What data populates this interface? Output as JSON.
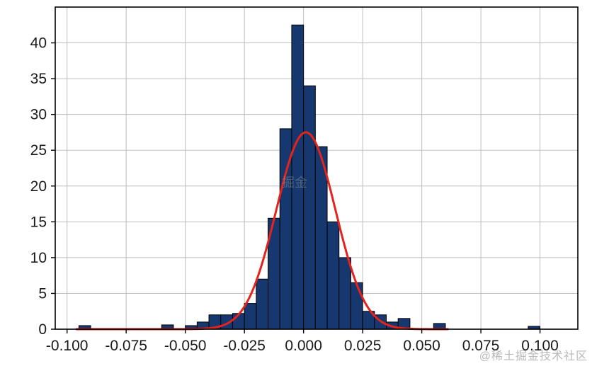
{
  "watermarks": {
    "corner": "@稀土掘金技术社区",
    "center": "掘金"
  },
  "chart_data": {
    "type": "bar",
    "subtype": "histogram-with-normal-fit",
    "title": "",
    "xlabel": "",
    "ylabel": "",
    "x_range": [
      -0.105,
      0.116
    ],
    "y_range": [
      0,
      45
    ],
    "x_tick_values": [
      -0.1,
      -0.075,
      -0.05,
      -0.025,
      0.0,
      0.025,
      0.05,
      0.075,
      0.1
    ],
    "x_tick_labels": [
      "-0.100",
      "-0.075",
      "-0.050",
      "-0.025",
      "0.000",
      "0.025",
      "0.050",
      "0.075",
      "0.100"
    ],
    "y_tick_values": [
      0,
      5,
      10,
      15,
      20,
      25,
      30,
      35,
      40
    ],
    "y_tick_labels": [
      "0",
      "5",
      "10",
      "15",
      "20",
      "25",
      "30",
      "35",
      "40"
    ],
    "grid": true,
    "grid_color": "#bdbdbd",
    "axis_color": "#000000",
    "bin_width": 0.005,
    "bar_color": "#17386e",
    "bar_edge_color": "#000000",
    "bars": [
      {
        "x": -0.0925,
        "h": 0.5
      },
      {
        "x": -0.0575,
        "h": 0.6
      },
      {
        "x": -0.0475,
        "h": 0.5
      },
      {
        "x": -0.0425,
        "h": 1.0
      },
      {
        "x": -0.0375,
        "h": 2.0
      },
      {
        "x": -0.0325,
        "h": 2.0
      },
      {
        "x": -0.0275,
        "h": 2.2
      },
      {
        "x": -0.0225,
        "h": 3.6
      },
      {
        "x": -0.0175,
        "h": 7.0
      },
      {
        "x": -0.0125,
        "h": 15.5
      },
      {
        "x": -0.0075,
        "h": 28.0
      },
      {
        "x": -0.0025,
        "h": 42.5
      },
      {
        "x": 0.0025,
        "h": 34.0
      },
      {
        "x": 0.0075,
        "h": 25.5
      },
      {
        "x": 0.0125,
        "h": 15.0
      },
      {
        "x": 0.0175,
        "h": 10.0
      },
      {
        "x": 0.0225,
        "h": 6.5
      },
      {
        "x": 0.0275,
        "h": 2.5
      },
      {
        "x": 0.0325,
        "h": 2.0
      },
      {
        "x": 0.0375,
        "h": 1.0
      },
      {
        "x": 0.0425,
        "h": 1.5
      },
      {
        "x": 0.0575,
        "h": 0.8
      },
      {
        "x": 0.0975,
        "h": 0.4
      }
    ],
    "curve": {
      "type": "normal",
      "amplitude": 27.5,
      "mean": 0.001,
      "sigma": 0.0125,
      "color": "#e5231d",
      "line_width": 3,
      "x_start": -0.096,
      "x_end": 0.061
    },
    "legend": null
  }
}
